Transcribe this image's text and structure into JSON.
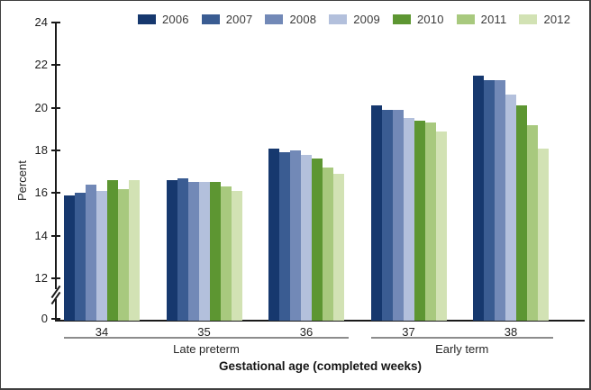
{
  "figure": {
    "y_axis_title": "Percent",
    "x_axis_title": "Gestational age (completed weeks)",
    "sections": [
      {
        "label": "Late preterm",
        "first_week": "34",
        "last_week": "36"
      },
      {
        "label": "Early term",
        "first_week": "37",
        "last_week": "38"
      }
    ]
  },
  "chart_data": {
    "type": "bar",
    "title": "",
    "xlabel": "Gestational age (completed weeks)",
    "ylabel": "Percent",
    "categories": [
      "34",
      "35",
      "36",
      "37",
      "38"
    ],
    "series": [
      {
        "name": "2006",
        "color": "#16386e",
        "values": [
          15.9,
          16.6,
          18.1,
          20.1,
          21.5
        ]
      },
      {
        "name": "2007",
        "color": "#3a5c92",
        "values": [
          16.0,
          16.7,
          17.9,
          19.9,
          21.3
        ]
      },
      {
        "name": "2008",
        "color": "#7289b7",
        "values": [
          16.4,
          16.5,
          18.0,
          19.9,
          21.3
        ]
      },
      {
        "name": "2009",
        "color": "#b3c0dc",
        "values": [
          16.1,
          16.5,
          17.8,
          19.5,
          20.6
        ]
      },
      {
        "name": "2010",
        "color": "#5d9632",
        "values": [
          16.6,
          16.5,
          17.6,
          19.4,
          20.1
        ]
      },
      {
        "name": "2011",
        "color": "#a8c97e",
        "values": [
          16.2,
          16.3,
          17.2,
          19.3,
          19.2
        ]
      },
      {
        "name": "2012",
        "color": "#d2e2b4",
        "values": [
          16.6,
          16.1,
          16.9,
          18.9,
          18.1
        ]
      }
    ],
    "y_ticks": [
      0,
      12,
      14,
      16,
      18,
      20,
      22,
      24
    ],
    "ylim_display": [
      12,
      24
    ],
    "axis_break_between": [
      0,
      12
    ],
    "grid": false,
    "legend_position": "top"
  }
}
